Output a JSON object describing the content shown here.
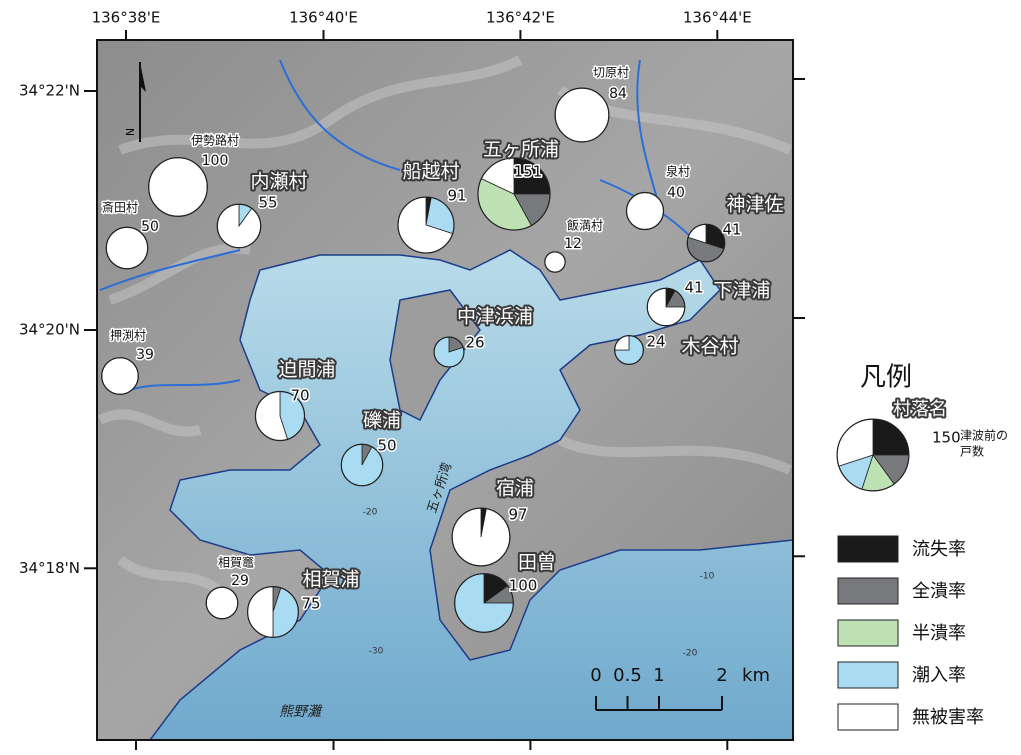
{
  "map": {
    "lon_ticks": [
      {
        "value": 136.6333,
        "label": "136°38'E"
      },
      {
        "value": 136.6667,
        "label": "136°40'E"
      },
      {
        "value": 136.7,
        "label": "136°42'E"
      },
      {
        "value": 136.7333,
        "label": "136°44'E"
      }
    ],
    "lat_ticks": [
      {
        "value": 34.3667,
        "label": "34°22'N"
      },
      {
        "value": 34.3333,
        "label": "34°20'N"
      },
      {
        "value": 34.3,
        "label": "34°18'N"
      }
    ],
    "north": "N",
    "villages": [
      {
        "name": "切原村",
        "households": 84,
        "shares": [
          0,
          0,
          0,
          0,
          100
        ]
      },
      {
        "name": "伊勢路村",
        "households": 100,
        "shares": [
          0,
          0,
          0,
          0,
          100
        ]
      },
      {
        "name": "斎田村",
        "households": 50,
        "shares": [
          0,
          0,
          0,
          0,
          100
        ]
      },
      {
        "name": "内瀬村",
        "households": 55,
        "shares": [
          0,
          0,
          0,
          10,
          90
        ]
      },
      {
        "name": "船越村",
        "households": 91,
        "shares": [
          3,
          0,
          0,
          27,
          70
        ]
      },
      {
        "name": "五ヶ所浦",
        "households": 151,
        "shares": [
          25,
          17,
          40,
          0,
          18
        ]
      },
      {
        "name": "飯満村",
        "households": 12,
        "shares": [
          0,
          0,
          0,
          0,
          100
        ]
      },
      {
        "name": "泉村",
        "households": 40,
        "shares": [
          0,
          0,
          0,
          0,
          100
        ]
      },
      {
        "name": "神津佐",
        "households": 41,
        "shares": [
          30,
          50,
          0,
          0,
          20
        ]
      },
      {
        "name": "下津浦",
        "households": 41,
        "shares": [
          8,
          17,
          0,
          0,
          75
        ]
      },
      {
        "name": "木谷村",
        "households": 24,
        "shares": [
          0,
          0,
          0,
          75,
          25
        ]
      },
      {
        "name": "中津浜浦",
        "households": 26,
        "shares": [
          0,
          20,
          0,
          80,
          0
        ]
      },
      {
        "name": "押渕村",
        "households": 39,
        "shares": [
          0,
          0,
          0,
          0,
          100
        ]
      },
      {
        "name": "迫間浦",
        "households": 70,
        "shares": [
          0,
          0,
          0,
          45,
          55
        ]
      },
      {
        "name": "礫浦",
        "households": 50,
        "shares": [
          0,
          8,
          0,
          92,
          0
        ]
      },
      {
        "name": "宿浦",
        "households": 97,
        "shares": [
          3,
          0,
          0,
          0,
          97
        ]
      },
      {
        "name": "田曽",
        "households": 100,
        "shares": [
          15,
          10,
          0,
          75,
          0
        ]
      },
      {
        "name": "相賀竈",
        "households": 29,
        "shares": [
          0,
          0,
          0,
          0,
          100
        ]
      },
      {
        "name": "相賀浦",
        "households": 75,
        "shares": [
          0,
          5,
          0,
          45,
          50
        ]
      }
    ],
    "water_labels": [
      "五ヶ所湾",
      "熊野灘"
    ],
    "depth_labels": [
      -20,
      -10,
      -20,
      -30
    ],
    "scale": {
      "ticks": [
        0,
        0.5,
        1,
        2
      ],
      "unit": "km"
    },
    "legend": {
      "title": "凡例",
      "name": "村落名",
      "households": 150,
      "households_label": [
        "津波前の",
        "戸数"
      ],
      "shares": [
        25,
        15,
        15,
        15,
        30
      ],
      "categories": [
        {
          "name": "流失率",
          "color": "#1a1a1a"
        },
        {
          "name": "全潰率",
          "color": "#77797c"
        },
        {
          "name": "半潰率",
          "color": "#bfe2b4"
        },
        {
          "name": "潮入率",
          "color": "#a9dcf3"
        },
        {
          "name": "無被害率",
          "color": "#ffffff"
        }
      ]
    }
  }
}
